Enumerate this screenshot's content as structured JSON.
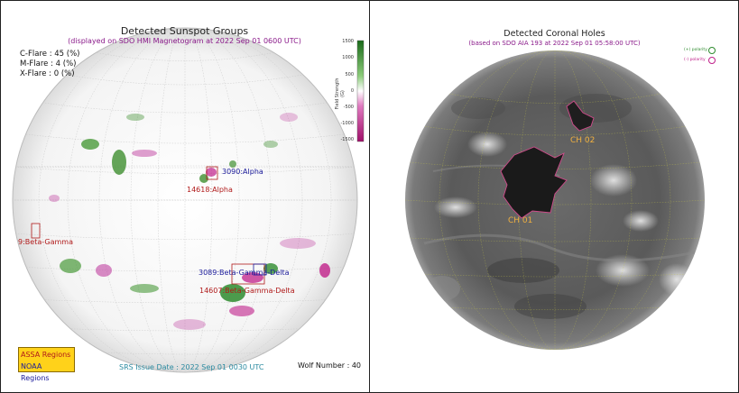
{
  "left_panel": {
    "title": "Detected Sunspot Groups",
    "subtitle": "(displayed on SDO HMI Magnetogram at 2022 Sep 01 0600 UTC)",
    "flare_probabilities": [
      {
        "label": "C-Flare : 45 (%)"
      },
      {
        "label": "M-Flare :  4 (%)"
      },
      {
        "label": "X-Flare :  0 (%)"
      }
    ],
    "colorbar": {
      "title": "Field Strength (G)",
      "ticks": [
        "1500",
        "1000",
        "500",
        "0",
        "-500",
        "-1000",
        "-1500"
      ],
      "positive_color": "#2e8b2e",
      "negative_color": "#c0208a"
    },
    "regions": [
      {
        "label": "3090:Alpha",
        "color": "#1a1a9a"
      },
      {
        "label": "14618:Alpha",
        "color": "#b01a1a"
      },
      {
        "label": "9:Beta-Gamma",
        "color": "#b01a1a"
      },
      {
        "label": "3089:Beta-Gamma-Delta",
        "color": "#1a1a9a"
      },
      {
        "label": "14607:Beta-Gamma-Delta",
        "color": "#b01a1a"
      }
    ],
    "legend": {
      "assa": "ASSA Regions",
      "noaa": "NOAA Regions"
    },
    "srs_issue": "SRS Issue Date : 2022 Sep 01 0030 UTC",
    "wolf_number": "Wolf Number : 40"
  },
  "right_panel": {
    "title": "Detected Coronal Holes",
    "subtitle": "(based on SDO AIA 193 at 2022 Sep 01 05:58:00 UTC)",
    "polarity_legend": [
      {
        "label": "(+) polarity",
        "color": "#2e8b2e"
      },
      {
        "label": "(-) polarity",
        "color": "#c0208a"
      }
    ],
    "coronal_holes": [
      {
        "label": "CH 01"
      },
      {
        "label": "CH 02"
      }
    ]
  }
}
